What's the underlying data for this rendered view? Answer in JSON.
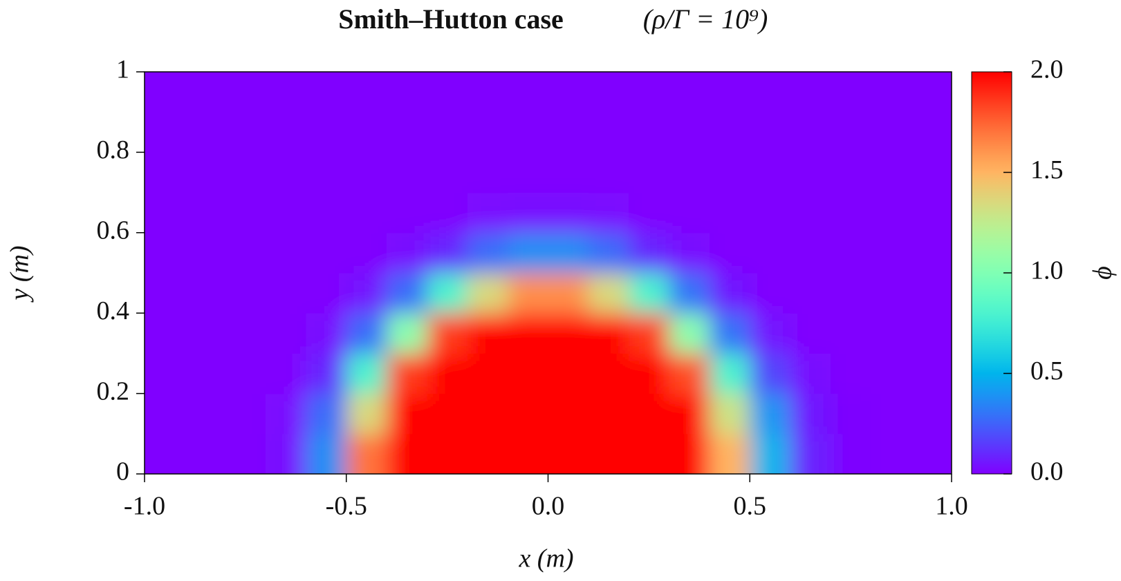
{
  "chart_data": {
    "type": "heatmap",
    "title": "Smith–Hutton case",
    "title_math": "(ρ/Γ = 10⁹)",
    "x_label": "x (m)",
    "y_label": "y (m)",
    "colorbar_label": "ϕ",
    "colormap": "rainbow",
    "x": [
      -0.95,
      -0.85,
      -0.75,
      -0.65,
      -0.55,
      -0.45,
      -0.35,
      -0.25,
      -0.15,
      -0.05,
      0.05,
      0.15,
      0.25,
      0.35,
      0.45,
      0.55,
      0.65,
      0.75,
      0.85,
      0.95
    ],
    "y": [
      0.05,
      0.15,
      0.25,
      0.35,
      0.45,
      0.55,
      0.65,
      0.75,
      0.85,
      0.95
    ],
    "z": [
      [
        0,
        0,
        0,
        0.03,
        0.38,
        1.7,
        2,
        2,
        2,
        2,
        2,
        2,
        2,
        2,
        1.5,
        0.5,
        0.08,
        0.01,
        0,
        0
      ],
      [
        0,
        0,
        0,
        0.02,
        0.28,
        1.35,
        2,
        2,
        2,
        2,
        2,
        2,
        2,
        2,
        1.3,
        0.4,
        0.06,
        0.01,
        0,
        0
      ],
      [
        0,
        0,
        0,
        0,
        0.1,
        0.8,
        1.85,
        2,
        2,
        2,
        2,
        2,
        2,
        1.8,
        0.8,
        0.18,
        0.03,
        0,
        0,
        0
      ],
      [
        0,
        0,
        0,
        0,
        0.03,
        0.28,
        1.05,
        1.85,
        2,
        2,
        2,
        2,
        1.85,
        1.05,
        0.3,
        0.05,
        0,
        0,
        0,
        0
      ],
      [
        0,
        0,
        0,
        0,
        0,
        0.05,
        0.28,
        0.8,
        1.35,
        1.62,
        1.62,
        1.35,
        0.8,
        0.3,
        0.06,
        0,
        0,
        0,
        0,
        0
      ],
      [
        0,
        0,
        0,
        0,
        0,
        0,
        0.03,
        0.1,
        0.28,
        0.38,
        0.38,
        0.28,
        0.1,
        0.03,
        0,
        0,
        0,
        0,
        0,
        0
      ],
      [
        0,
        0,
        0,
        0,
        0,
        0,
        0,
        0,
        0.02,
        0.03,
        0.03,
        0.02,
        0,
        0,
        0,
        0,
        0,
        0,
        0,
        0
      ],
      [
        0,
        0,
        0,
        0,
        0,
        0,
        0,
        0,
        0,
        0,
        0,
        0,
        0,
        0,
        0,
        0,
        0,
        0,
        0,
        0
      ],
      [
        0,
        0,
        0,
        0,
        0,
        0,
        0,
        0,
        0,
        0,
        0,
        0,
        0,
        0,
        0,
        0,
        0,
        0,
        0,
        0
      ],
      [
        0,
        0,
        0,
        0,
        0,
        0,
        0,
        0,
        0,
        0,
        0,
        0,
        0,
        0,
        0,
        0,
        0,
        0,
        0,
        0
      ]
    ],
    "xlim": [
      -1,
      1
    ],
    "xticks": [
      {
        "value": -1,
        "label": "-1.0"
      },
      {
        "value": -0.5,
        "label": "-0.5"
      },
      {
        "value": 0,
        "label": "0.0"
      },
      0.5,
      {
        "value": 1,
        "label": "1.0"
      }
    ],
    "ylim": [
      0,
      1
    ],
    "yticks": [
      0,
      0.2,
      0.4,
      0.6,
      0.8,
      1
    ],
    "zlim": [
      0,
      2
    ],
    "zticks": [
      {
        "value": 0,
        "label": "0.0"
      },
      0.5,
      {
        "value": 1,
        "label": "1.0"
      },
      1.5,
      {
        "value": 2,
        "label": "2.0"
      }
    ]
  }
}
